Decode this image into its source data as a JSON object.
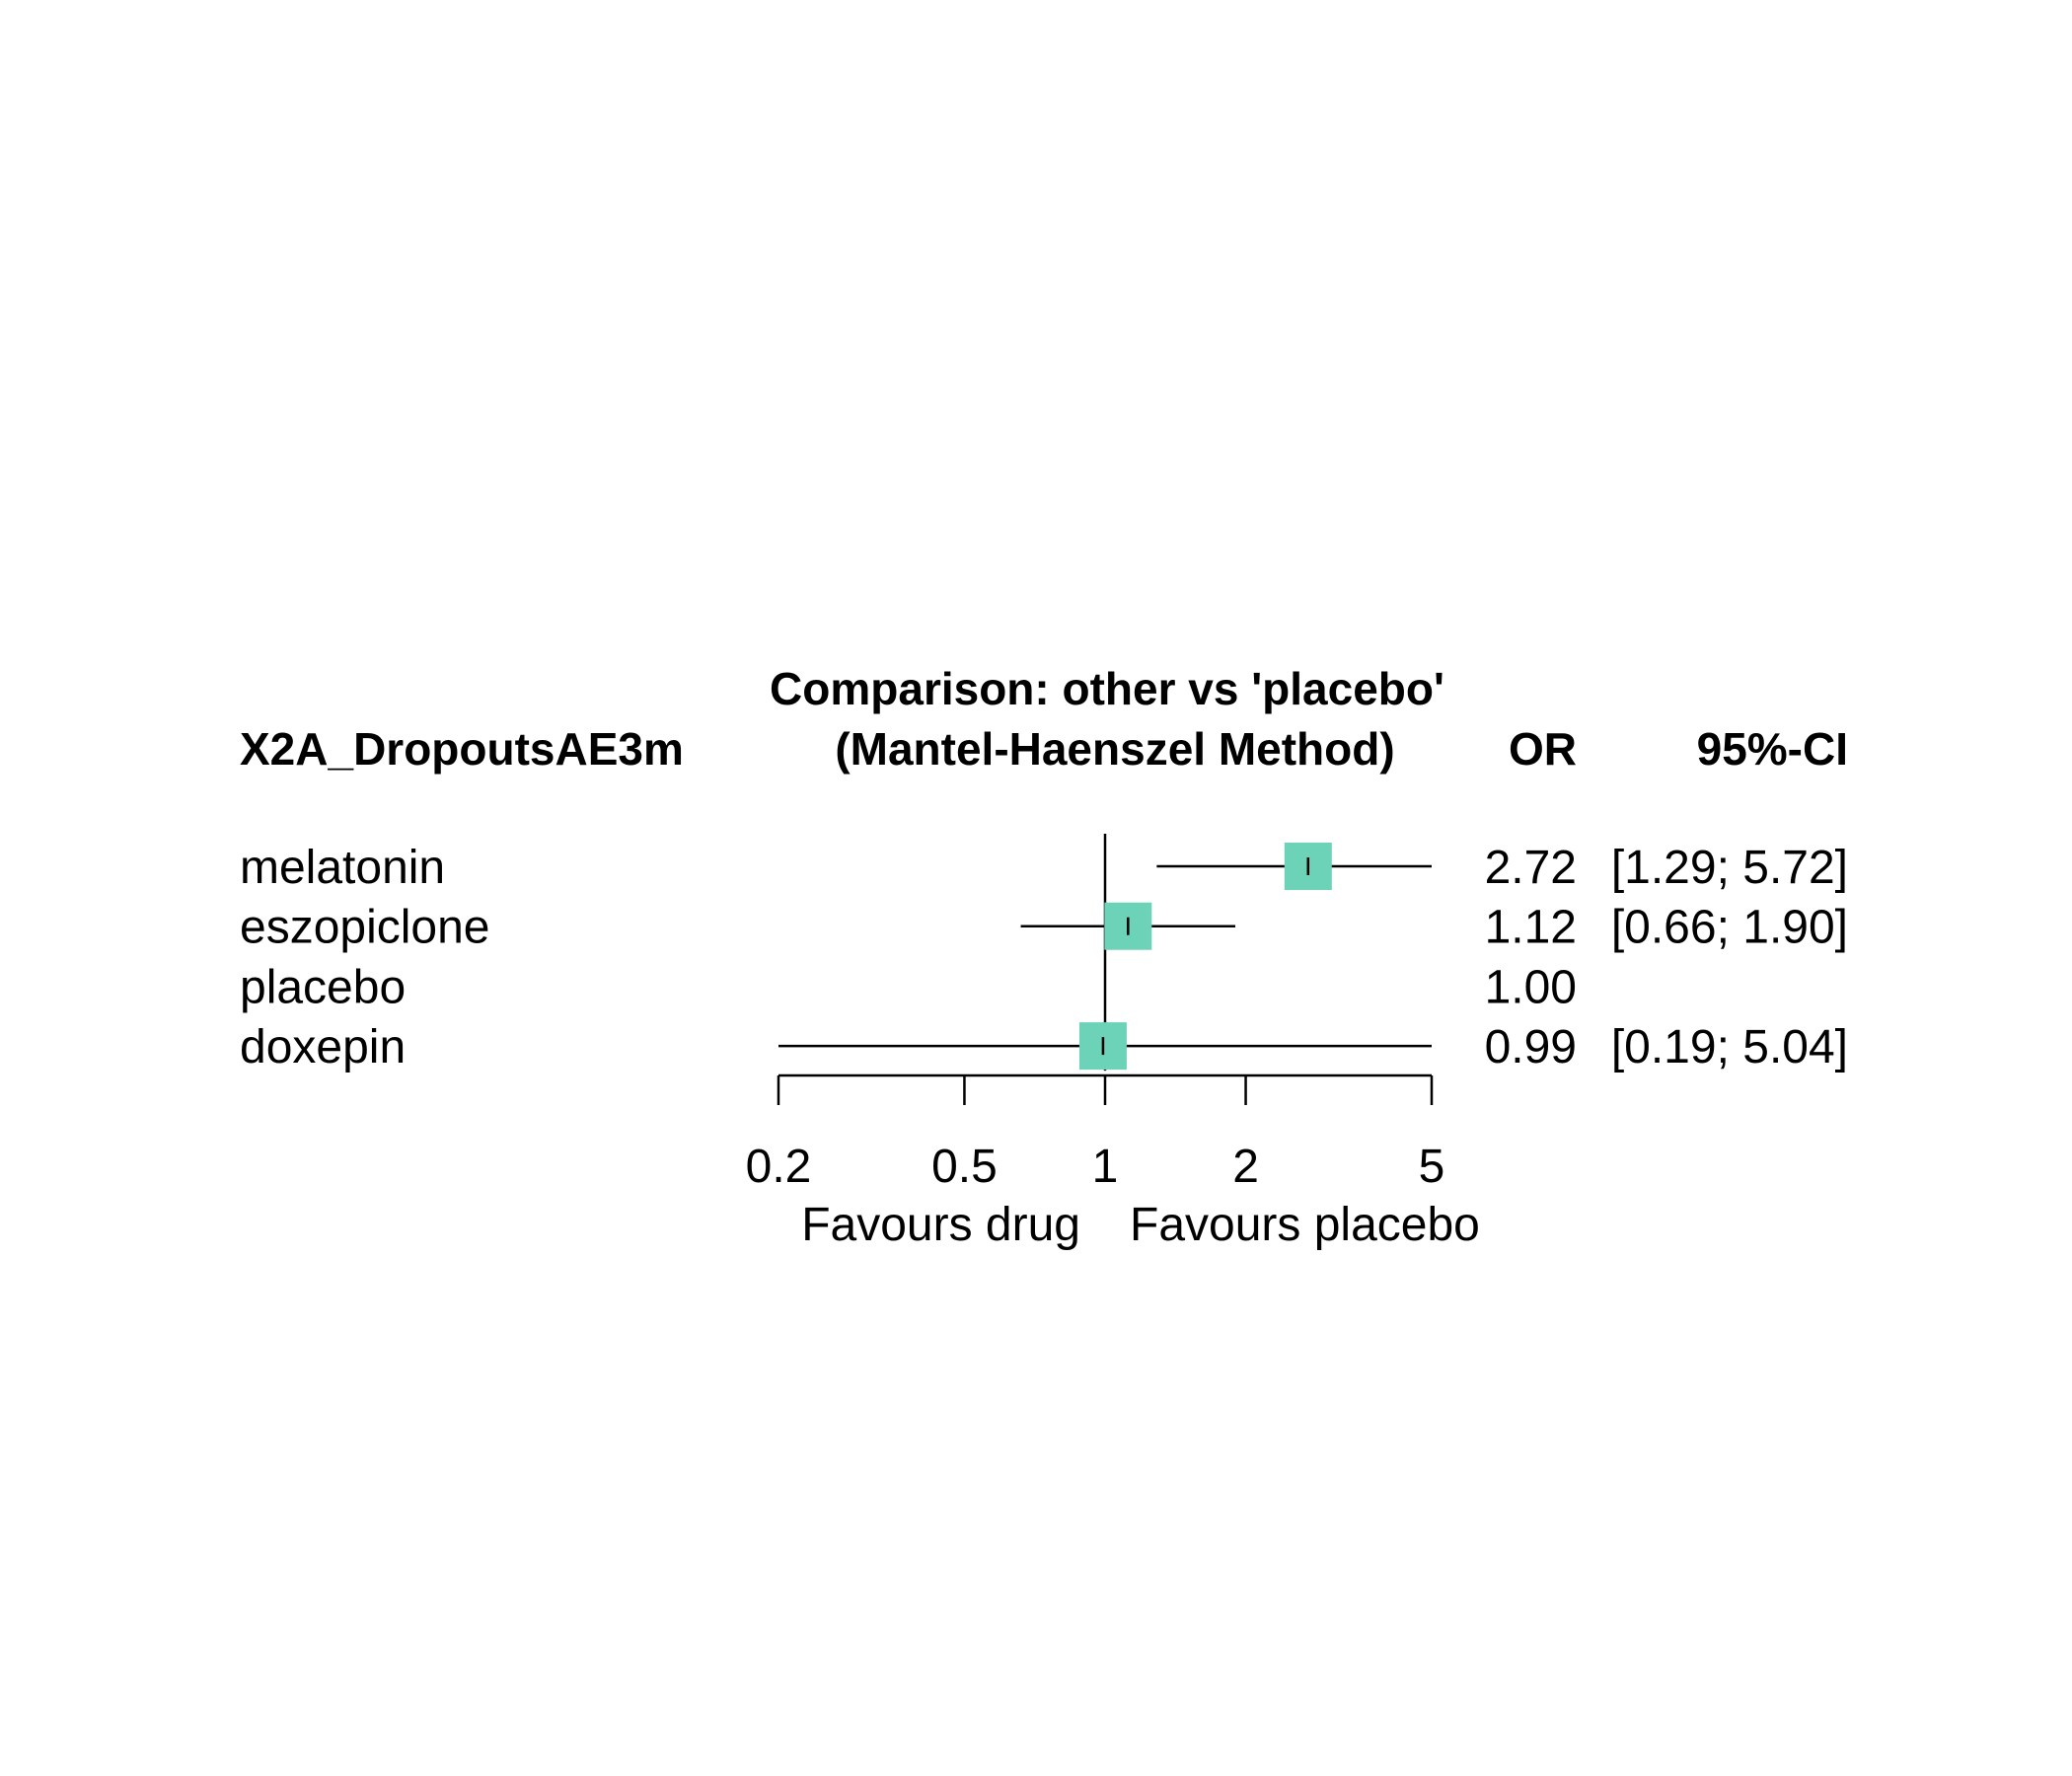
{
  "chart_data": {
    "type": "forest",
    "title_line1": "Comparison: other vs 'placebo'",
    "title_line2": "(Mantel-Haenszel Method)",
    "outcome_label": "X2A_DropoutsAE3m",
    "col_or": "OR",
    "col_ci": "95%-CI",
    "scale": "log",
    "xlim": [
      0.2,
      5
    ],
    "reference_value": 1,
    "ticks": [
      {
        "value": 0.2,
        "label": "0.2"
      },
      {
        "value": 0.5,
        "label": "0.5"
      },
      {
        "value": 1,
        "label": "1"
      },
      {
        "value": 2,
        "label": "2"
      },
      {
        "value": 5,
        "label": "5"
      }
    ],
    "favours_left": "Favours drug",
    "favours_right": "Favours placebo",
    "marker_color": "#6dd3b8",
    "rows": [
      {
        "name": "melatonin",
        "or": 2.72,
        "lower": 1.29,
        "upper": 5.72,
        "or_text": "2.72",
        "ci_text": "[1.29; 5.72]"
      },
      {
        "name": "eszopiclone",
        "or": 1.12,
        "lower": 0.66,
        "upper": 1.9,
        "or_text": "1.12",
        "ci_text": "[0.66; 1.90]"
      },
      {
        "name": "placebo",
        "or": 1.0,
        "lower": null,
        "upper": null,
        "or_text": "1.00",
        "ci_text": ""
      },
      {
        "name": "doxepin",
        "or": 0.99,
        "lower": 0.19,
        "upper": 5.04,
        "or_text": "0.99",
        "ci_text": "[0.19; 5.04]"
      }
    ]
  }
}
